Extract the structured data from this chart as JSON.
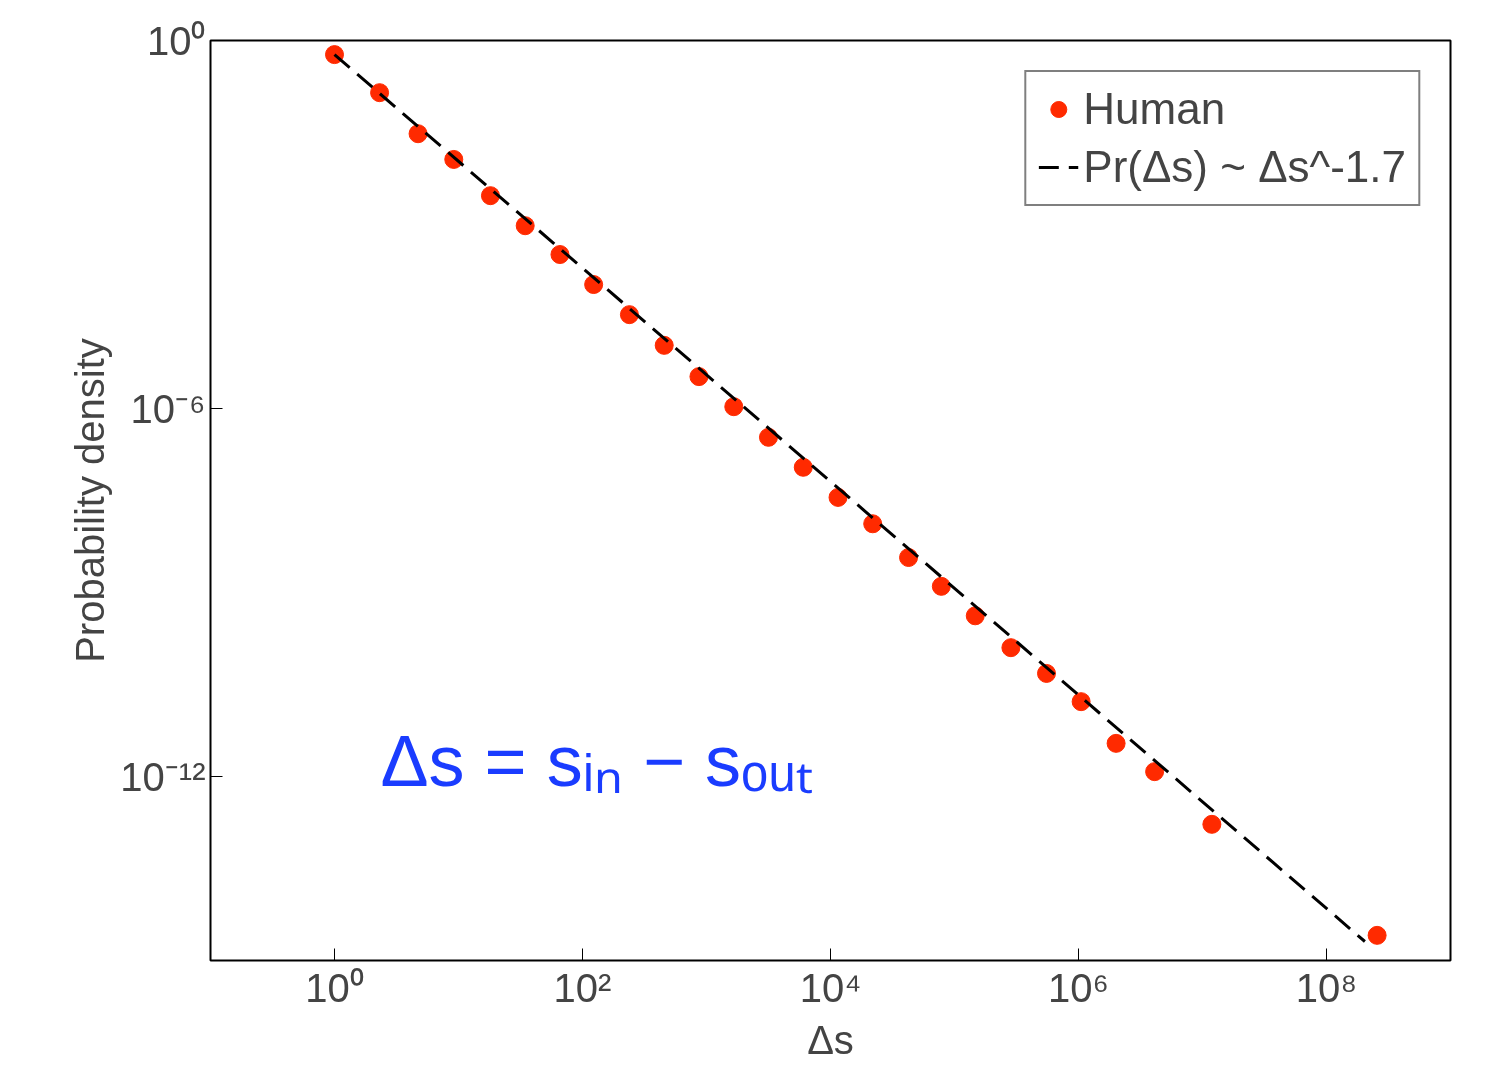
{
  "chart_data": {
    "type": "scatter",
    "xlabel": "Δs",
    "ylabel": "Probability density",
    "log": "xy",
    "grid": false,
    "legend": "top right",
    "xlim": [
      0.1,
      1000000000
    ],
    "xticks": [
      {
        "value": 1,
        "label": "10⁰"
      },
      {
        "value": 100,
        "label": "10²"
      },
      {
        "value": 10000,
        "label": "10⁴"
      },
      {
        "value": 1000000,
        "label": "10⁶"
      },
      {
        "value": 100000000,
        "label": "10⁸"
      }
    ],
    "ylim": [
      1e-15,
      1
    ],
    "yticks": [
      {
        "value": 1,
        "label": "10⁰"
      },
      {
        "value": 1e-06,
        "label": "10⁻⁶"
      },
      {
        "value": 1e-12,
        "label": "10⁻¹²"
      }
    ],
    "annotations": [
      "Δs = sᵢₙ − sₒᵤₜ"
    ],
    "series": [
      {
        "name": "Human",
        "marker": "circle",
        "color": "#ff2a00",
        "x": [
          1,
          2.31,
          4.72,
          9.16,
          18.1,
          34.5,
          65.8,
          123,
          239,
          456,
          869,
          1660,
          3160,
          6030,
          11500,
          21900,
          42600,
          78300,
          147000,
          285000,
          552000,
          1050000,
          2010000,
          4110000,
          11900000,
          256000000
        ],
        "values": [
          0.589,
          0.141,
          0.0302,
          0.0115,
          0.00295,
          0.000955,
          0.000324,
          0.000105,
          3.39e-05,
          1.07e-05,
          3.31e-06,
          1.07e-06,
          3.39e-07,
          1.1e-07,
          3.55e-08,
          1.32e-08,
          3.72e-09,
          1.26e-09,
          4.17e-10,
          1.26e-10,
          4.79e-11,
          1.66e-11,
          3.47e-12,
          1.2e-12,
          1.66e-13,
          2.57e-15
        ]
      },
      {
        "name": "Pr(Δs) ~ Δs^-1.7",
        "type": "line",
        "line_style": "dashed",
        "color": "#000000",
        "x": [
          1,
          204000000
        ],
        "values": [
          0.589,
          2.04e-15
        ]
      }
    ]
  }
}
